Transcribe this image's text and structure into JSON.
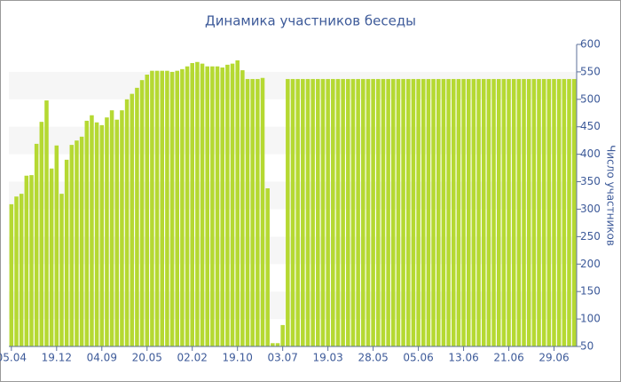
{
  "chart_data": {
    "type": "bar",
    "title": "Динамика участников беседы",
    "y_label": "Число участников",
    "categories": [
      "05.04",
      null,
      null,
      null,
      null,
      null,
      null,
      null,
      null,
      "19.12",
      null,
      null,
      null,
      null,
      null,
      null,
      null,
      null,
      "04.09",
      null,
      null,
      null,
      null,
      null,
      null,
      null,
      null,
      "20.05",
      null,
      null,
      null,
      null,
      null,
      null,
      null,
      null,
      "02.02",
      null,
      null,
      null,
      null,
      null,
      null,
      null,
      null,
      "19.10",
      null,
      null,
      null,
      null,
      null,
      null,
      null,
      null,
      "03.07",
      null,
      null,
      null,
      null,
      null,
      null,
      null,
      null,
      "19.03",
      null,
      null,
      null,
      null,
      null,
      null,
      null,
      null,
      "28.05",
      null,
      null,
      null,
      null,
      null,
      null,
      null,
      null,
      "05.06",
      null,
      null,
      null,
      null,
      null,
      null,
      null,
      null,
      "13.06",
      null,
      null,
      null,
      null,
      null,
      null,
      null,
      null,
      "21.06",
      null,
      null,
      null,
      null,
      null,
      null,
      null,
      null,
      "29.06",
      null,
      null,
      null,
      null
    ],
    "values": [
      309,
      323,
      328,
      361,
      362,
      419,
      459,
      498,
      374,
      416,
      328,
      390,
      417,
      425,
      432,
      461,
      471,
      458,
      453,
      467,
      480,
      463,
      480,
      500,
      510,
      521,
      535,
      545,
      552,
      552,
      552,
      552,
      550,
      552,
      555,
      560,
      566,
      568,
      565,
      560,
      560,
      560,
      558,
      563,
      565,
      571,
      553,
      537,
      537,
      537,
      539,
      338,
      56,
      56,
      89,
      537,
      537,
      537,
      537,
      537,
      537,
      537,
      537,
      537,
      537,
      537,
      537,
      537,
      537,
      537,
      537,
      537,
      537,
      537,
      537,
      537,
      537,
      537,
      537,
      537,
      537,
      537,
      537,
      537,
      537,
      537,
      537,
      537,
      537,
      537,
      537,
      537,
      537,
      537,
      537,
      537,
      537,
      537,
      537,
      537,
      537,
      537,
      537,
      537,
      537,
      537,
      537,
      537,
      537,
      537,
      537,
      537,
      537
    ],
    "color": "#b5d932",
    "ylim": [
      50,
      600
    ],
    "yticks": [
      50,
      100,
      150,
      200,
      250,
      300,
      350,
      400,
      450,
      500,
      550,
      600
    ],
    "grid": true
  }
}
